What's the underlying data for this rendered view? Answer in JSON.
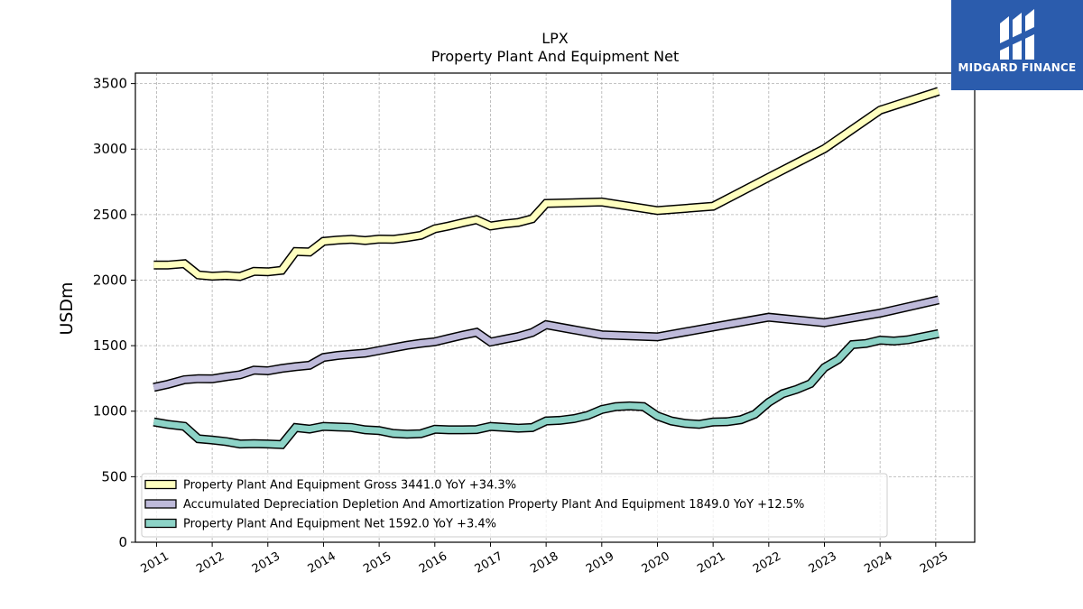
{
  "chart_data": {
    "type": "line",
    "title": "LPX",
    "subtitle": "Property Plant And Equipment Net",
    "ylabel": "USDm",
    "xlabel": "",
    "ylim": [
      0,
      3580
    ],
    "xlim": [
      2010.62,
      2025.7
    ],
    "yticks": [
      0,
      500,
      1000,
      1500,
      2000,
      2500,
      3000,
      3500
    ],
    "xticks": [
      "2011",
      "2012",
      "2013",
      "2014",
      "2015",
      "2016",
      "2017",
      "2018",
      "2019",
      "2020",
      "2021",
      "2022",
      "2023",
      "2024",
      "2025"
    ],
    "grid": true,
    "legend": {
      "placement": "lower-left"
    },
    "series": [
      {
        "name": "Property Plant And Equipment Gross",
        "legend_label": "Property Plant And Equipment Gross  3441.0 YoY +34.3%",
        "color": "#ffffbf",
        "points": [
          [
            2010.95,
            2115
          ],
          [
            2011.2,
            2115
          ],
          [
            2011.5,
            2125
          ],
          [
            2011.75,
            2040
          ],
          [
            2012.0,
            2030
          ],
          [
            2012.25,
            2035
          ],
          [
            2012.5,
            2028
          ],
          [
            2012.75,
            2067
          ],
          [
            2013.0,
            2063
          ],
          [
            2013.25,
            2075
          ],
          [
            2013.5,
            2218
          ],
          [
            2013.75,
            2215
          ],
          [
            2014.0,
            2296
          ],
          [
            2014.25,
            2306
          ],
          [
            2014.5,
            2311
          ],
          [
            2014.75,
            2302
          ],
          [
            2015.0,
            2313
          ],
          [
            2015.25,
            2311
          ],
          [
            2015.5,
            2325
          ],
          [
            2015.75,
            2342
          ],
          [
            2016.0,
            2392
          ],
          [
            2016.25,
            2413
          ],
          [
            2016.5,
            2438
          ],
          [
            2016.75,
            2461
          ],
          [
            2017.0,
            2413
          ],
          [
            2017.25,
            2429
          ],
          [
            2017.5,
            2440
          ],
          [
            2017.75,
            2468
          ],
          [
            2018.0,
            2585
          ],
          [
            2019.0,
            2596
          ],
          [
            2020.0,
            2531
          ],
          [
            2021.0,
            2564
          ],
          [
            2022.0,
            2785
          ],
          [
            2023.0,
            3003
          ],
          [
            2024.0,
            3297
          ],
          [
            2025.05,
            3441
          ]
        ]
      },
      {
        "name": "Accumulated Depreciation Depletion And Amortization Property Plant And Equipment",
        "legend_label": "Accumulated Depreciation Depletion And Amortization Property Plant And Equipment  1849.0 YoY +12.5%",
        "color": "#bebada",
        "points": [
          [
            2010.95,
            1182
          ],
          [
            2011.2,
            1205
          ],
          [
            2011.5,
            1240
          ],
          [
            2011.75,
            1248
          ],
          [
            2012.0,
            1247
          ],
          [
            2012.25,
            1263
          ],
          [
            2012.5,
            1278
          ],
          [
            2012.75,
            1313
          ],
          [
            2013.0,
            1308
          ],
          [
            2013.25,
            1327
          ],
          [
            2013.5,
            1340
          ],
          [
            2013.75,
            1350
          ],
          [
            2014.0,
            1410
          ],
          [
            2014.25,
            1425
          ],
          [
            2014.5,
            1435
          ],
          [
            2014.75,
            1443
          ],
          [
            2015.0,
            1463
          ],
          [
            2015.25,
            1483
          ],
          [
            2015.5,
            1503
          ],
          [
            2015.75,
            1518
          ],
          [
            2016.0,
            1530
          ],
          [
            2016.25,
            1555
          ],
          [
            2016.5,
            1580
          ],
          [
            2016.75,
            1602
          ],
          [
            2017.0,
            1528
          ],
          [
            2017.25,
            1549
          ],
          [
            2017.5,
            1570
          ],
          [
            2017.75,
            1600
          ],
          [
            2018.0,
            1660
          ],
          [
            2019.0,
            1583
          ],
          [
            2020.0,
            1567
          ],
          [
            2021.0,
            1643
          ],
          [
            2022.0,
            1717
          ],
          [
            2023.0,
            1675
          ],
          [
            2024.0,
            1748
          ],
          [
            2025.05,
            1849
          ]
        ]
      },
      {
        "name": "Property Plant And Equipment Net",
        "legend_label": "Property Plant And Equipment Net  1592.0 YoY +3.4%",
        "color": "#8dd3c7",
        "points": [
          [
            2010.95,
            918
          ],
          [
            2011.2,
            900
          ],
          [
            2011.5,
            885
          ],
          [
            2011.75,
            790
          ],
          [
            2012.0,
            780
          ],
          [
            2012.25,
            768
          ],
          [
            2012.5,
            750
          ],
          [
            2012.75,
            752
          ],
          [
            2013.0,
            750
          ],
          [
            2013.25,
            745
          ],
          [
            2013.5,
            875
          ],
          [
            2013.75,
            863
          ],
          [
            2014.0,
            884
          ],
          [
            2014.25,
            880
          ],
          [
            2014.5,
            876
          ],
          [
            2014.75,
            858
          ],
          [
            2015.0,
            852
          ],
          [
            2015.25,
            830
          ],
          [
            2015.5,
            825
          ],
          [
            2015.75,
            828
          ],
          [
            2016.0,
            862
          ],
          [
            2016.25,
            858
          ],
          [
            2016.5,
            858
          ],
          [
            2016.75,
            860
          ],
          [
            2017.0,
            883
          ],
          [
            2017.25,
            877
          ],
          [
            2017.5,
            870
          ],
          [
            2017.75,
            875
          ],
          [
            2018.0,
            925
          ],
          [
            2018.25,
            930
          ],
          [
            2018.5,
            943
          ],
          [
            2018.75,
            968
          ],
          [
            2019.0,
            1013
          ],
          [
            2019.25,
            1035
          ],
          [
            2019.5,
            1040
          ],
          [
            2019.75,
            1035
          ],
          [
            2020.0,
            963
          ],
          [
            2020.25,
            925
          ],
          [
            2020.5,
            907
          ],
          [
            2020.75,
            900
          ],
          [
            2021.0,
            918
          ],
          [
            2021.25,
            920
          ],
          [
            2021.5,
            935
          ],
          [
            2021.75,
            977
          ],
          [
            2022.0,
            1068
          ],
          [
            2022.25,
            1133
          ],
          [
            2022.5,
            1166
          ],
          [
            2022.75,
            1210
          ],
          [
            2023.0,
            1333
          ],
          [
            2023.25,
            1395
          ],
          [
            2023.5,
            1508
          ],
          [
            2023.75,
            1517
          ],
          [
            2024.0,
            1542
          ],
          [
            2024.25,
            1535
          ],
          [
            2024.5,
            1545
          ],
          [
            2025.05,
            1592
          ]
        ]
      }
    ]
  },
  "logo": {
    "text": "MIDGARD FINANCE",
    "background": "#2b5cad"
  }
}
